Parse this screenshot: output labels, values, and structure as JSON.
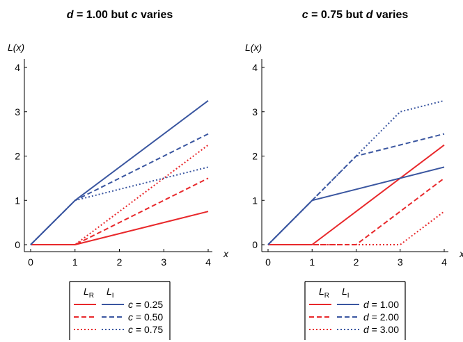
{
  "colors": {
    "red": "#e8282b",
    "blue": "#3a56a0"
  },
  "chart_data": [
    {
      "type": "line",
      "title": "d = 1.00 but c varies",
      "title_parts": [
        "d",
        " = 1.00 but ",
        "c",
        " varies"
      ],
      "xlabel": "x",
      "ylabel": "L(x)",
      "xlim": [
        0,
        4
      ],
      "ylim": [
        0,
        4
      ],
      "xticks": [
        "0",
        "1",
        "2",
        "3",
        "4"
      ],
      "yticks": [
        "0",
        "1",
        "2",
        "3",
        "4"
      ],
      "legend": {
        "headers": [
          "L_R",
          "L_I"
        ],
        "param": "c",
        "rows": [
          "0.25",
          "0.50",
          "0.75"
        ]
      },
      "series": [
        {
          "group": "R",
          "style": "solid",
          "color": "red",
          "x": [
            0,
            1,
            4
          ],
          "y": [
            0,
            0,
            0.75
          ]
        },
        {
          "group": "R",
          "style": "dashed",
          "color": "red",
          "x": [
            0,
            1,
            4
          ],
          "y": [
            0,
            0,
            1.5
          ]
        },
        {
          "group": "R",
          "style": "dotted",
          "color": "red",
          "x": [
            0,
            1,
            4
          ],
          "y": [
            0,
            0,
            2.25
          ]
        },
        {
          "group": "I",
          "style": "solid",
          "color": "blue",
          "x": [
            0,
            1,
            4
          ],
          "y": [
            0,
            1,
            3.25
          ]
        },
        {
          "group": "I",
          "style": "dashed",
          "color": "blue",
          "x": [
            0,
            1,
            4
          ],
          "y": [
            0,
            1,
            2.5
          ]
        },
        {
          "group": "I",
          "style": "dotted",
          "color": "blue",
          "x": [
            0,
            1,
            4
          ],
          "y": [
            0,
            1,
            1.75
          ]
        }
      ]
    },
    {
      "type": "line",
      "title": "c = 0.75 but d varies",
      "title_parts": [
        "c",
        " = 0.75 but ",
        "d",
        " varies"
      ],
      "xlabel": "x",
      "ylabel": "L(x)",
      "xlim": [
        0,
        4
      ],
      "ylim": [
        0,
        4
      ],
      "xticks": [
        "0",
        "1",
        "2",
        "3",
        "4"
      ],
      "yticks": [
        "0",
        "1",
        "2",
        "3",
        "4"
      ],
      "legend": {
        "headers": [
          "L_R",
          "L_I"
        ],
        "param": "d",
        "rows": [
          "1.00",
          "2.00",
          "3.00"
        ]
      },
      "series": [
        {
          "group": "R",
          "style": "solid",
          "color": "red",
          "x": [
            0,
            1,
            4
          ],
          "y": [
            0,
            0,
            2.25
          ]
        },
        {
          "group": "R",
          "style": "dashed",
          "color": "red",
          "x": [
            0,
            2,
            4
          ],
          "y": [
            0,
            0,
            1.5
          ]
        },
        {
          "group": "R",
          "style": "dotted",
          "color": "red",
          "x": [
            0,
            3,
            4
          ],
          "y": [
            0,
            0,
            0.75
          ]
        },
        {
          "group": "I",
          "style": "solid",
          "color": "blue",
          "x": [
            0,
            1,
            4
          ],
          "y": [
            0,
            1,
            1.75
          ]
        },
        {
          "group": "I",
          "style": "dashed",
          "color": "blue",
          "x": [
            0,
            1,
            2,
            4
          ],
          "y": [
            0,
            1,
            2,
            2.5
          ]
        },
        {
          "group": "I",
          "style": "dotted",
          "color": "blue",
          "x": [
            0,
            1,
            3,
            4
          ],
          "y": [
            0,
            1,
            3,
            3.25
          ]
        }
      ]
    }
  ]
}
